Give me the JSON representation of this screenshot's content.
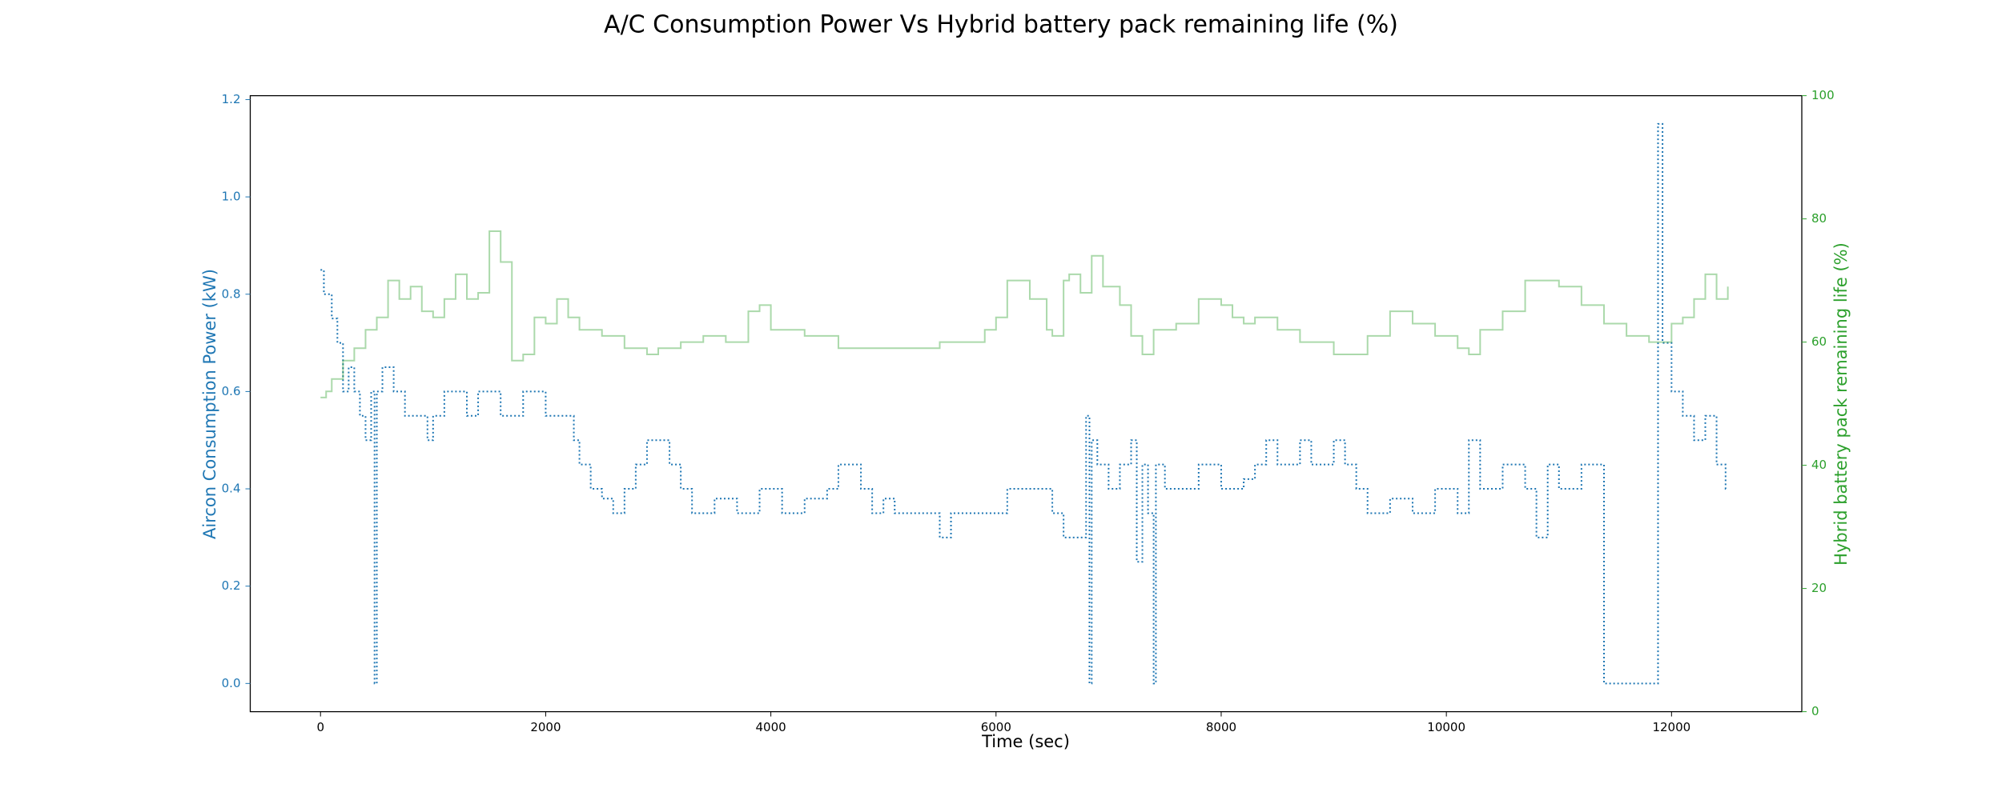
{
  "chart_data": {
    "type": "line",
    "title": "A/C Consumption Power Vs Hybrid battery pack remaining life (%)",
    "x_label": "Time (sec)",
    "y_label": "Aircon Consumption Power (kW)",
    "y2_label": "Hybrid battery pack remaining life (%)",
    "step": "post",
    "xlim": [
      -624,
      13157
    ],
    "xticks": [
      0,
      2000,
      4000,
      6000,
      8000,
      10000,
      12000
    ],
    "ylim": [
      -0.058,
      1.208
    ],
    "yticks": [
      {
        "value": 0,
        "label": "0.0"
      },
      0.2,
      0.4,
      0.6,
      0.8,
      {
        "value": 1,
        "label": "1.0"
      },
      1.2
    ],
    "y2lim": [
      0,
      100
    ],
    "y2ticks": [
      0,
      20,
      40,
      60,
      80,
      100
    ],
    "series": [
      {
        "name": "Aircon Consumption Power (kW)",
        "color": "#1f77b4",
        "linestyle": "dotted",
        "axis": "y",
        "x": [
          0,
          30,
          100,
          150,
          200,
          250,
          300,
          350,
          400,
          450,
          480,
          500,
          550,
          650,
          750,
          950,
          1000,
          1100,
          1300,
          1400,
          1600,
          1800,
          2000,
          2250,
          2300,
          2400,
          2500,
          2600,
          2700,
          2800,
          2900,
          3100,
          3200,
          3300,
          3500,
          3700,
          3900,
          4100,
          4300,
          4500,
          4600,
          4800,
          4900,
          5000,
          5100,
          5500,
          5600,
          6100,
          6500,
          6600,
          6800,
          6830,
          6850,
          6900,
          7000,
          7100,
          7200,
          7250,
          7300,
          7350,
          7400,
          7420,
          7500,
          7800,
          8000,
          8200,
          8300,
          8400,
          8500,
          8700,
          8800,
          9000,
          9100,
          9200,
          9300,
          9500,
          9700,
          9900,
          10100,
          10200,
          10300,
          10500,
          10700,
          10800,
          10900,
          11000,
          11200,
          11400,
          11880,
          11920,
          12000,
          12100,
          12200,
          12300,
          12400,
          12480,
          12500
        ],
        "values": [
          0.85,
          0.8,
          0.75,
          0.7,
          0.6,
          0.65,
          0.6,
          0.55,
          0.5,
          0.6,
          0.0,
          0.6,
          0.65,
          0.6,
          0.55,
          0.5,
          0.55,
          0.6,
          0.55,
          0.6,
          0.55,
          0.6,
          0.55,
          0.5,
          0.45,
          0.4,
          0.38,
          0.35,
          0.4,
          0.45,
          0.5,
          0.45,
          0.4,
          0.35,
          0.38,
          0.35,
          0.4,
          0.35,
          0.38,
          0.4,
          0.45,
          0.4,
          0.35,
          0.38,
          0.35,
          0.3,
          0.35,
          0.4,
          0.35,
          0.3,
          0.55,
          0.0,
          0.5,
          0.45,
          0.4,
          0.45,
          0.5,
          0.25,
          0.45,
          0.35,
          0.0,
          0.45,
          0.4,
          0.45,
          0.4,
          0.42,
          0.45,
          0.5,
          0.45,
          0.5,
          0.45,
          0.5,
          0.45,
          0.4,
          0.35,
          0.38,
          0.35,
          0.4,
          0.35,
          0.5,
          0.4,
          0.45,
          0.4,
          0.3,
          0.45,
          0.4,
          0.45,
          0.0,
          1.15,
          0.7,
          0.6,
          0.55,
          0.5,
          0.55,
          0.45,
          0.4,
          0.4
        ]
      },
      {
        "name": "Hybrid battery pack remaining life (%)",
        "color": "#2ca02c",
        "opacity": 0.4,
        "linestyle": "solid",
        "axis": "y2",
        "x": [
          0,
          50,
          100,
          200,
          300,
          400,
          500,
          600,
          700,
          800,
          900,
          1000,
          1100,
          1200,
          1300,
          1400,
          1500,
          1600,
          1700,
          1800,
          1900,
          2000,
          2100,
          2200,
          2300,
          2500,
          2700,
          2900,
          3000,
          3200,
          3400,
          3600,
          3800,
          3900,
          4000,
          4300,
          4600,
          5000,
          5500,
          5900,
          6000,
          6100,
          6300,
          6450,
          6500,
          6600,
          6650,
          6750,
          6850,
          6950,
          7100,
          7200,
          7300,
          7400,
          7600,
          7800,
          8000,
          8100,
          8200,
          8300,
          8500,
          8700,
          9000,
          9200,
          9300,
          9500,
          9700,
          9900,
          10100,
          10200,
          10300,
          10500,
          10700,
          10900,
          11000,
          11200,
          11400,
          11600,
          11800,
          11900,
          12000,
          12100,
          12200,
          12300,
          12400,
          12500
        ],
        "values": [
          51,
          52,
          54,
          57,
          59,
          62,
          64,
          70,
          67,
          69,
          65,
          64,
          67,
          71,
          67,
          68,
          78,
          73,
          57,
          58,
          64,
          63,
          67,
          64,
          62,
          61,
          59,
          58,
          59,
          60,
          61,
          60,
          65,
          66,
          62,
          61,
          59,
          59,
          60,
          62,
          64,
          70,
          67,
          62,
          61,
          70,
          71,
          68,
          74,
          69,
          66,
          61,
          58,
          62,
          63,
          67,
          66,
          64,
          63,
          64,
          62,
          60,
          58,
          58,
          61,
          65,
          63,
          61,
          59,
          58,
          62,
          65,
          70,
          70,
          69,
          66,
          63,
          61,
          60,
          60,
          63,
          64,
          67,
          71,
          67,
          69
        ]
      }
    ]
  }
}
